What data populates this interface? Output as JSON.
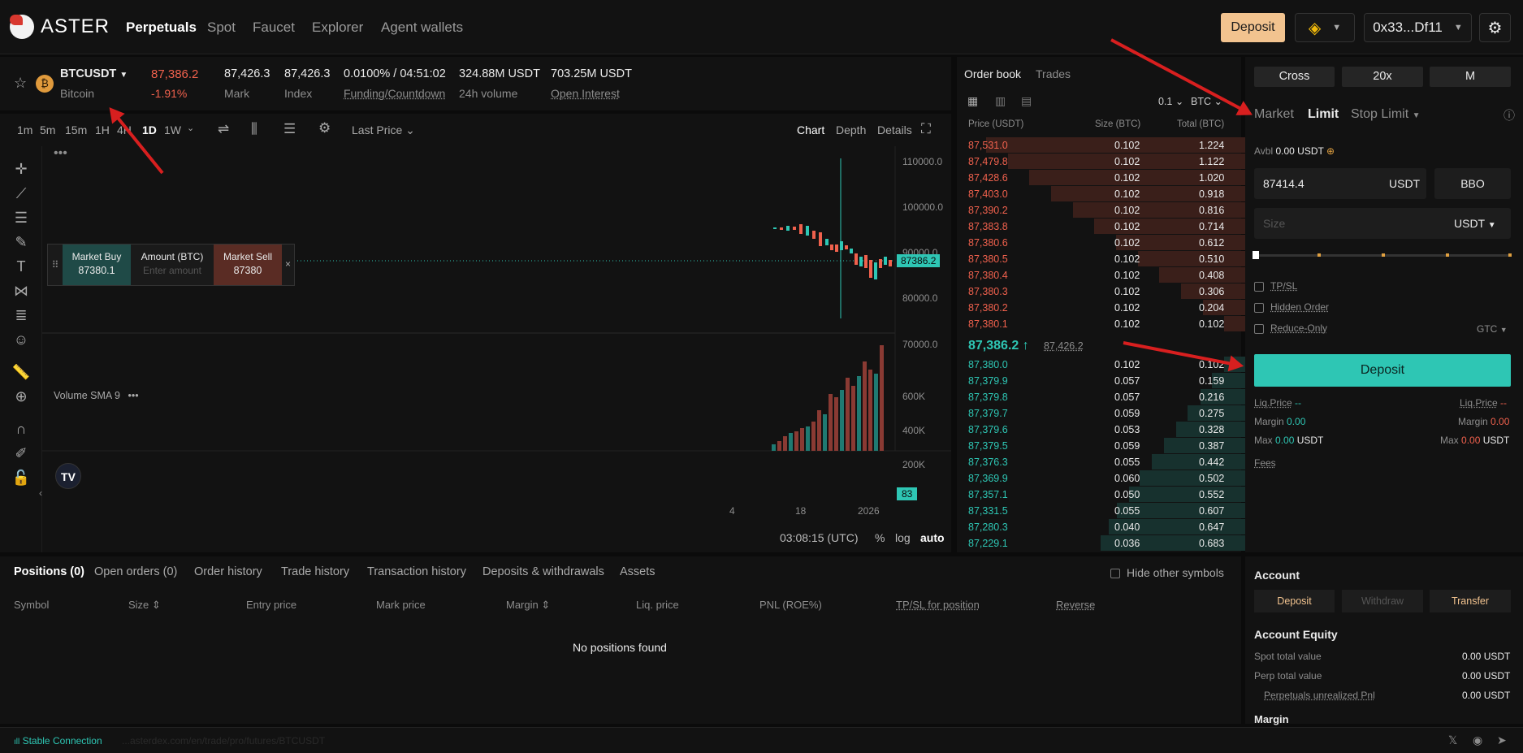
{
  "nav": {
    "brand": "ASTER",
    "links": [
      "Perpetuals",
      "Spot",
      "Faucet",
      "Explorer",
      "Agent wallets"
    ],
    "deposit": "Deposit",
    "wallet": "0x33...Df11"
  },
  "ticker": {
    "symbol": "BTCUSDT",
    "name": "Bitcoin",
    "price": "87,386.2",
    "change": "-1.91%",
    "mark": "87,426.3",
    "mark_label": "Mark",
    "index": "87,426.3",
    "index_label": "Index",
    "funding": "0.0100% / 04:51:02",
    "funding_label": "Funding/Countdown",
    "volume": "324.88M USDT",
    "volume_label": "24h volume",
    "oi": "703.25M USDT",
    "oi_label": "Open Interest"
  },
  "chart": {
    "timeframes": [
      "1m",
      "5m",
      "15m",
      "1H",
      "4H",
      "1D",
      "1W"
    ],
    "price_type": "Last Price",
    "views": [
      "Chart",
      "Depth",
      "Details"
    ],
    "y_ticks": [
      "110000.0",
      "100000.0",
      "90000.0",
      "80000.0",
      "70000.0"
    ],
    "last": "87386.2",
    "volume_label": "Volume SMA 9",
    "vol_ticks": [
      "600K",
      "400K",
      "200K"
    ],
    "vol_last": "83",
    "x_ticks": [
      "4",
      "18",
      "2026"
    ],
    "clock": "03:08:15 (UTC)",
    "pct": "%",
    "log": "log",
    "auto": "auto",
    "quick": {
      "buy_label": "Market Buy",
      "buy_price": "87380.1",
      "amount_label": "Amount (BTC)",
      "amount_placeholder": "Enter amount",
      "sell_label": "Market Sell",
      "sell_price": "87380"
    }
  },
  "orderbook": {
    "tabs": [
      "Order book",
      "Trades"
    ],
    "step": "0.1",
    "unit": "BTC",
    "headers": [
      "Price (USDT)",
      "Size (BTC)",
      "Total (BTC)"
    ],
    "asks": [
      [
        "87,531.0",
        "0.102",
        "1.224"
      ],
      [
        "87,479.8",
        "0.102",
        "1.122"
      ],
      [
        "87,428.6",
        "0.102",
        "1.020"
      ],
      [
        "87,403.0",
        "0.102",
        "0.918"
      ],
      [
        "87,390.2",
        "0.102",
        "0.816"
      ],
      [
        "87,383.8",
        "0.102",
        "0.714"
      ],
      [
        "87,380.6",
        "0.102",
        "0.612"
      ],
      [
        "87,380.5",
        "0.102",
        "0.510"
      ],
      [
        "87,380.4",
        "0.102",
        "0.408"
      ],
      [
        "87,380.3",
        "0.102",
        "0.306"
      ],
      [
        "87,380.2",
        "0.102",
        "0.204"
      ],
      [
        "87,380.1",
        "0.102",
        "0.102"
      ]
    ],
    "mid": "87,386.2",
    "mid_arrow": "↑",
    "mid_mark": "87,426.2",
    "bids": [
      [
        "87,380.0",
        "0.102",
        "0.102"
      ],
      [
        "87,379.9",
        "0.057",
        "0.159"
      ],
      [
        "87,379.8",
        "0.057",
        "0.216"
      ],
      [
        "87,379.7",
        "0.059",
        "0.275"
      ],
      [
        "87,379.6",
        "0.053",
        "0.328"
      ],
      [
        "87,379.5",
        "0.059",
        "0.387"
      ],
      [
        "87,376.3",
        "0.055",
        "0.442"
      ],
      [
        "87,369.9",
        "0.060",
        "0.502"
      ],
      [
        "87,357.1",
        "0.050",
        "0.552"
      ],
      [
        "87,331.5",
        "0.055",
        "0.607"
      ],
      [
        "87,280.3",
        "0.040",
        "0.647"
      ],
      [
        "87,229.1",
        "0.036",
        "0.683"
      ]
    ]
  },
  "trade": {
    "margin_mode": "Cross",
    "leverage": "20x",
    "mode": "M",
    "types": [
      "Market",
      "Limit",
      "Stop Limit"
    ],
    "avbl_label": "Avbl",
    "avbl": "0.00 USDT",
    "price": "87414.4",
    "price_unit": "USDT",
    "bbo": "BBO",
    "size_placeholder": "Size",
    "size_unit": "USDT",
    "tpsl": "TP/SL",
    "hidden": "Hidden Order",
    "reduce": "Reduce-Only",
    "tif": "GTC",
    "deposit": "Deposit",
    "liq_label": "Liq.Price",
    "liq_buy": "--",
    "liq_sell": "--",
    "margin_label": "Margin",
    "margin_buy": "0.00",
    "margin_sell": "0.00",
    "max_label": "Max",
    "max_buy": "0.00",
    "max_sell": "0.00",
    "max_unit": "USDT",
    "fees": "Fees"
  },
  "positions": {
    "tabs": [
      "Positions (0)",
      "Open orders (0)",
      "Order history",
      "Trade history",
      "Transaction history",
      "Deposits & withdrawals",
      "Assets"
    ],
    "hide_label": "Hide other symbols",
    "columns": [
      "Symbol",
      "Size",
      "Entry price",
      "Mark price",
      "Margin",
      "Liq. price",
      "PNL (ROE%)",
      "TP/SL for position",
      "Reverse"
    ],
    "empty": "No positions found"
  },
  "account": {
    "title": "Account",
    "deposit": "Deposit",
    "withdraw": "Withdraw",
    "transfer": "Transfer",
    "equity_title": "Account Equity",
    "rows": [
      [
        "Spot total value",
        "0.00 USDT"
      ],
      [
        "Perp total value",
        "0.00 USDT"
      ],
      [
        "Perpetuals unrealized Pnl",
        "0.00 USDT"
      ]
    ],
    "margin_title": "Margin"
  },
  "footer": {
    "status": "Stable Connection",
    "url": "...asterdex.com/en/trade/pro/futures/BTCUSDT"
  },
  "colors": {
    "accent": "#2ec6b4",
    "down": "#f0614d",
    "deposit": "#f2c38f"
  }
}
